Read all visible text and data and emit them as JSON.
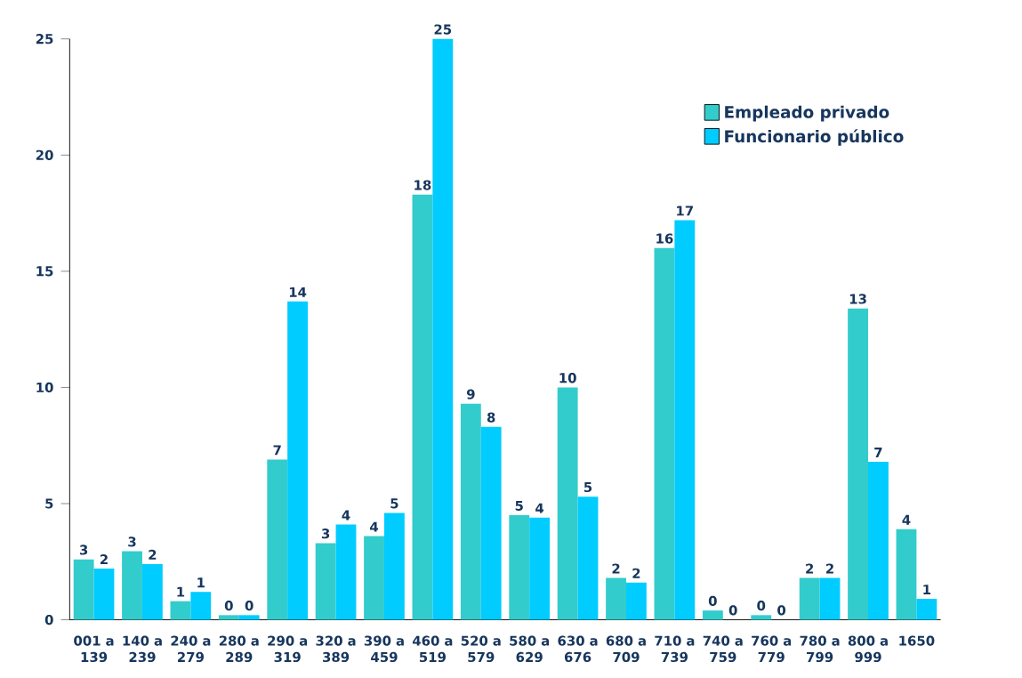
{
  "chart_data": {
    "type": "bar",
    "categories": [
      "001 a 139",
      "140 a 239",
      "240 a 279",
      "280 a 289",
      "290 a 319",
      "320 a 389",
      "390 a 459",
      "460 a 519",
      "520 a 579",
      "580 a 629",
      "630 a 676",
      "680 a 709",
      "710 a 739",
      "740 a 759",
      "760 a 779",
      "780 a 799",
      "800 a 999",
      "1650"
    ],
    "series": [
      {
        "name": "Empleado privado",
        "color": "#33cccc",
        "values": [
          2.6,
          2.95,
          0.8,
          0.2,
          6.9,
          3.3,
          3.6,
          18.3,
          9.3,
          4.5,
          10.0,
          1.8,
          16.0,
          0.4,
          0.2,
          1.8,
          13.4,
          3.9
        ],
        "value_labels": [
          "3",
          "3",
          "1",
          "0",
          "7",
          "3",
          "4",
          "18",
          "9",
          "5",
          "10",
          "2",
          "16",
          "0",
          "0",
          "2",
          "13",
          "4"
        ]
      },
      {
        "name": "Funcionario público",
        "color": "#00ccff",
        "values": [
          2.2,
          2.4,
          1.2,
          0.2,
          13.7,
          4.1,
          4.6,
          25,
          8.3,
          4.4,
          5.3,
          1.6,
          17.2,
          0.0,
          0.0,
          1.8,
          6.8,
          0.9
        ],
        "value_labels": [
          "2",
          "2",
          "1",
          "0",
          "14",
          "4",
          "5",
          "25",
          "8",
          "4",
          "5",
          "2",
          "17",
          "0",
          "0",
          "2",
          "7",
          "1"
        ]
      }
    ],
    "ylim": [
      0,
      25
    ],
    "yticks": [
      0,
      5,
      10,
      15,
      20,
      25
    ],
    "grid": false,
    "legend": "top right"
  }
}
